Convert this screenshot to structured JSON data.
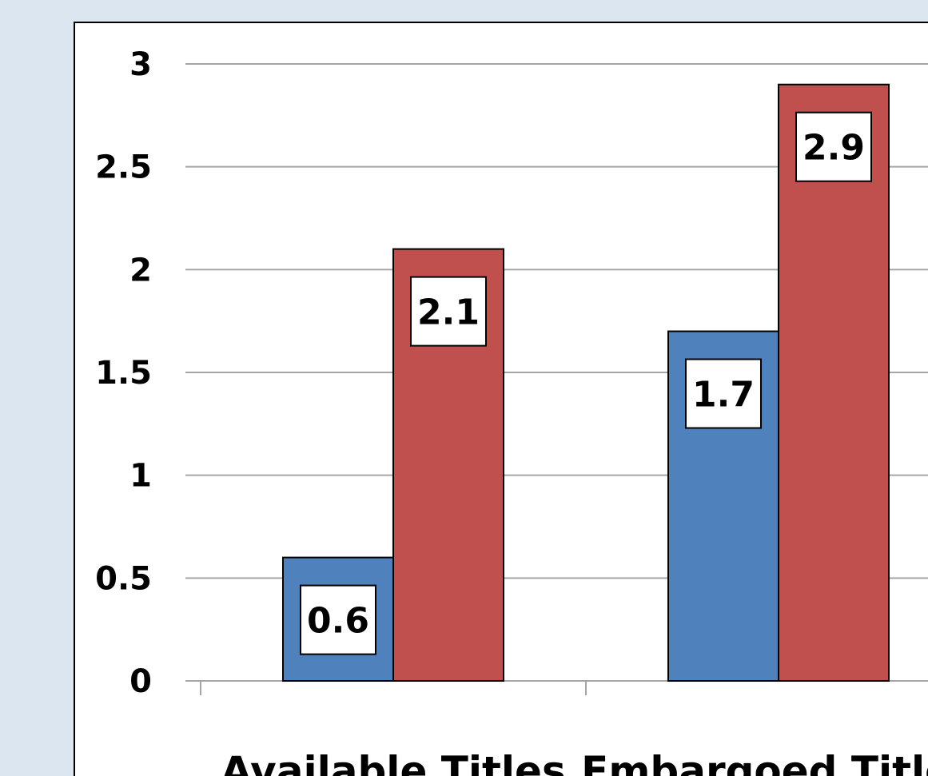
{
  "chart_data": {
    "type": "bar",
    "categories": [
      "Available Titles",
      "Embargoed Titles"
    ],
    "series": [
      {
        "values": [
          0.6,
          1.7
        ],
        "color": "#4f81bd"
      },
      {
        "values": [
          2.1,
          2.9
        ],
        "color": "#c0504d"
      }
    ],
    "ylim": [
      0,
      3
    ],
    "yticks": [
      "0",
      "0.5",
      "1",
      "1.5",
      "2",
      "2.5",
      "3"
    ],
    "data_labels": [
      [
        "0.6",
        "1.7"
      ],
      [
        "2.1",
        "2.9"
      ]
    ],
    "grid": true,
    "legend": "none",
    "title": "",
    "xlabel": "",
    "ylabel": ""
  },
  "colors": {
    "page_background": "#dce6f1",
    "plot_background": "#ffffff",
    "gridline": "#a6a6a6",
    "bar_outline": "#000000"
  }
}
